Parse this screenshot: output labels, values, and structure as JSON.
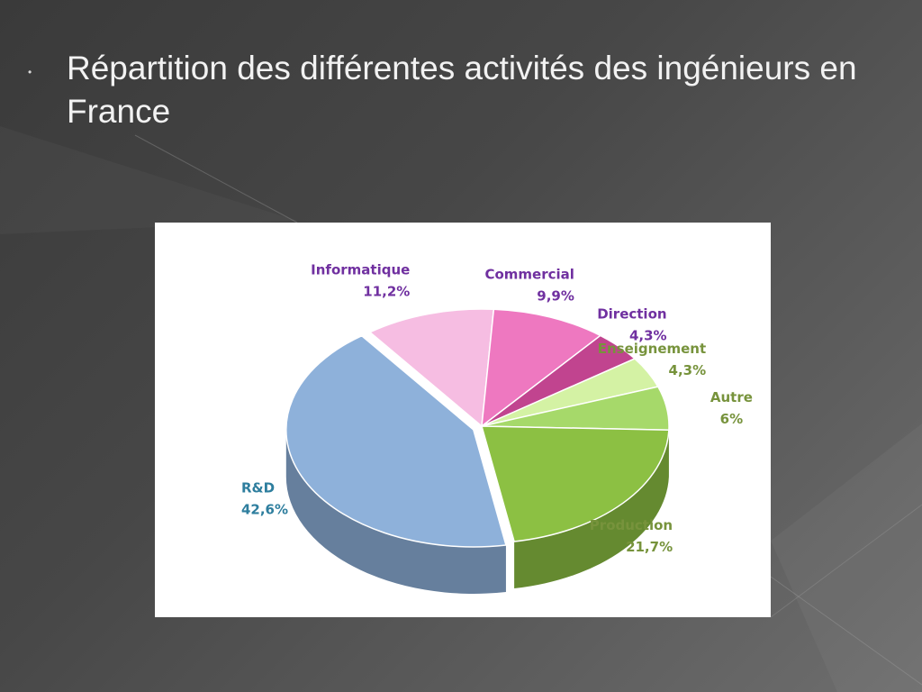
{
  "slide": {
    "bullet": "•",
    "title": "Répartition des différentes activités des ingénieurs en France"
  },
  "chart_data": {
    "type": "pie",
    "title": "",
    "categories": [
      "R&D",
      "Informatique",
      "Commercial",
      "Direction",
      "Enseignement",
      "Autre",
      "Production"
    ],
    "values": [
      42.6,
      11.2,
      9.9,
      4.3,
      4.3,
      6,
      21.7
    ],
    "labels": [
      "R&D 42,6%",
      "Informatique 11,2%",
      "Commercial 9,9%",
      "Direction 4,3%",
      "Enseignement 4,3%",
      "Autre 6%",
      "Production 21,7%"
    ],
    "value_labels": [
      "42,6%",
      "11,2%",
      "9,9%",
      "4,3%",
      "4,3%",
      "6%",
      "21,7%"
    ],
    "colors": [
      "#8eb1da",
      "#f6bde2",
      "#ee78c0",
      "#c1448f",
      "#d4f2a4",
      "#a6d96a",
      "#8cc043"
    ],
    "label_colors": [
      "#2e7e9e",
      "#7030a0",
      "#7030a0",
      "#7030a0",
      "#77933c",
      "#77933c",
      "#77933c"
    ],
    "style": "3d-exploded"
  }
}
